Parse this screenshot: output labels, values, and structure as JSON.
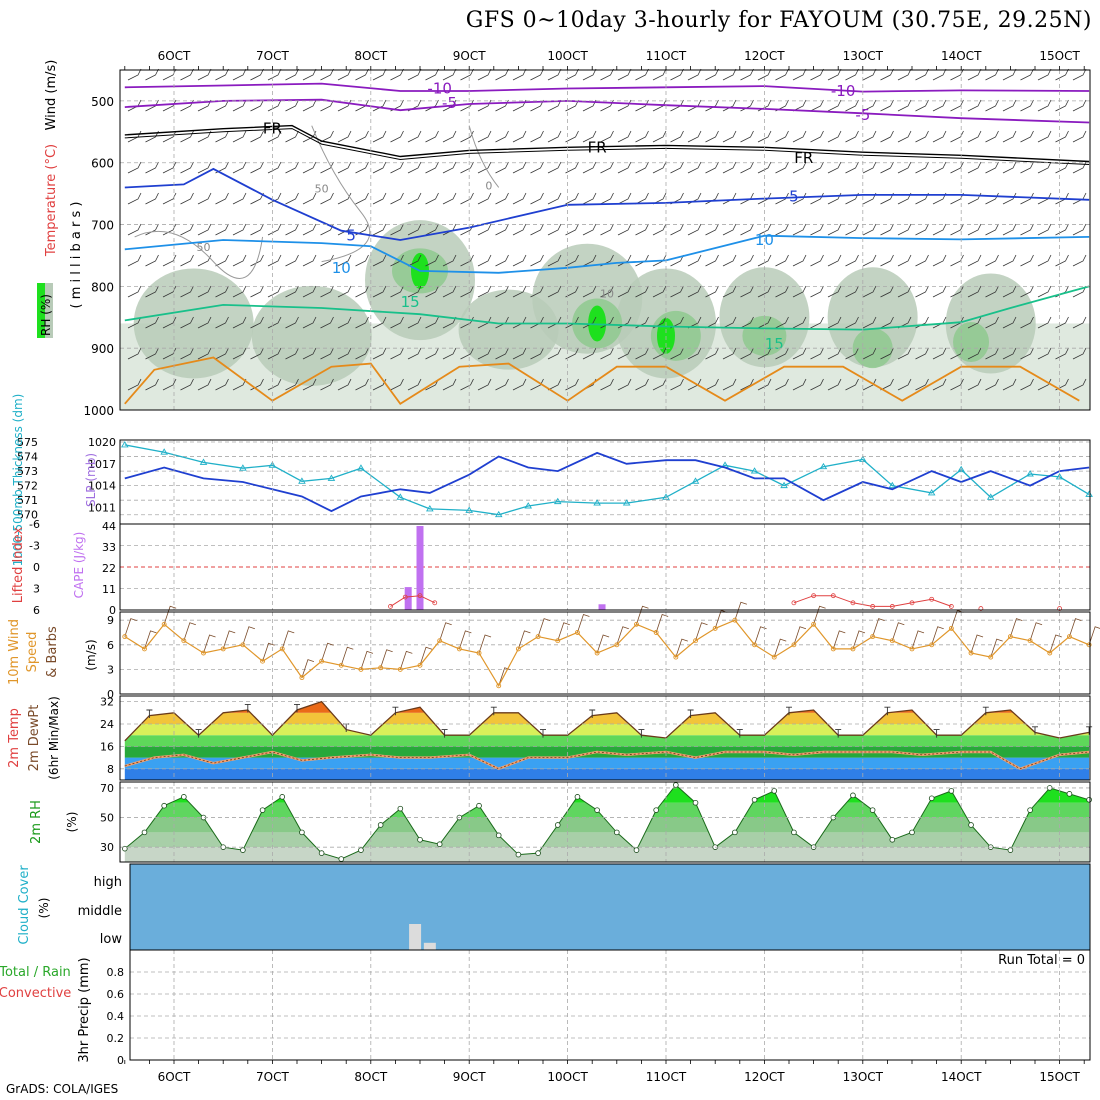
{
  "title": "GFS 0~10day 3-hourly for FAYOUM (30.75E, 29.25N)",
  "credit": "GrADS: COLA/IGES",
  "colors": {
    "purple": "#8a1bbf",
    "black": "#000000",
    "blue": "#1f3fd0",
    "lightblue": "#1e90e8",
    "teal": "#18c08a",
    "orange": "#e58a1a",
    "cyan": "#20b0c8",
    "slp": "#1f3fd0",
    "cape": "#c071f0",
    "li": "#e04040",
    "wind": "#e0962a",
    "rhgreen": "#1ee01e",
    "cloud": "#6aaedb",
    "grid": "#aaaaaa"
  },
  "chart_data": [
    {
      "type": "line",
      "panel": "upper-air",
      "ylabel_parts": [
        "RH (%)",
        "Temperature (°C)",
        "Wind (m/s)"
      ],
      "ylabel2": "(millibars)",
      "x_ticks": [
        "6OCT",
        "7OCT",
        "8OCT",
        "9OCT",
        "10OCT",
        "11OCT",
        "12OCT",
        "13OCT",
        "14OCT",
        "15OCT"
      ],
      "y_ticks": [
        "500",
        "600",
        "700",
        "800",
        "900",
        "1000"
      ],
      "ylim": [
        450,
        1000
      ],
      "contour_labels": [
        "-10",
        "-10",
        "-5",
        "-5",
        "FR",
        "FR",
        "FR",
        "5",
        "5",
        "10",
        "10",
        "15",
        "15",
        "50",
        "10",
        "50",
        "0"
      ],
      "series": [
        {
          "name": "-10",
          "x": [
            5.5,
            6.5,
            7.5,
            8.3,
            9.0,
            10.0,
            11.0,
            12.0,
            13.0,
            14.0,
            15.3
          ],
          "y": [
            478,
            475,
            472,
            484,
            484,
            480,
            478,
            476,
            485,
            483,
            484
          ]
        },
        {
          "name": "-5",
          "x": [
            5.5,
            6.5,
            7.5,
            8.3,
            9.0,
            10.0,
            11.0,
            12.0,
            13.0,
            14.0,
            15.3
          ],
          "y": [
            510,
            500,
            498,
            515,
            505,
            500,
            507,
            513,
            520,
            528,
            535
          ]
        },
        {
          "name": "FR",
          "x": [
            5.5,
            6.5,
            7.2,
            7.5,
            8.3,
            9.0,
            10.0,
            11.0,
            12.0,
            13.0,
            14.0,
            15.3
          ],
          "y": [
            555,
            545,
            540,
            565,
            590,
            580,
            575,
            572,
            575,
            583,
            588,
            598
          ]
        },
        {
          "name": "5",
          "x": [
            5.5,
            6.1,
            6.4,
            7.0,
            7.7,
            8.3,
            9.0,
            10.0,
            11.0,
            12.0,
            13.0,
            14.0,
            15.3
          ],
          "y": [
            640,
            635,
            610,
            660,
            710,
            725,
            705,
            668,
            665,
            658,
            652,
            652,
            660
          ]
        },
        {
          "name": "10",
          "x": [
            5.5,
            6.5,
            7.5,
            8.0,
            8.5,
            9.3,
            10.0,
            10.5,
            11.0,
            12.0,
            13.0,
            14.0,
            15.3
          ],
          "y": [
            740,
            725,
            730,
            735,
            775,
            778,
            770,
            762,
            758,
            718,
            722,
            724,
            720
          ]
        },
        {
          "name": "15",
          "x": [
            5.5,
            6.5,
            7.5,
            8.5,
            9.3,
            10.0,
            11.0,
            12.0,
            13.0,
            14.0,
            14.5,
            15.3
          ],
          "y": [
            855,
            830,
            835,
            845,
            860,
            860,
            865,
            868,
            870,
            858,
            835,
            800
          ]
        },
        {
          "name": "20",
          "x": [
            5.5,
            5.8,
            6.4,
            7.0,
            7.6,
            8.0,
            8.3,
            8.9,
            9.4,
            10.0,
            10.5,
            11.0,
            11.6,
            12.2,
            12.8,
            13.4,
            14.0,
            14.6,
            15.2
          ],
          "y": [
            990,
            935,
            915,
            985,
            930,
            925,
            990,
            930,
            925,
            985,
            930,
            930,
            985,
            930,
            930,
            985,
            930,
            930,
            985
          ]
        }
      ],
      "rh_peaks": [
        {
          "x": 8.5,
          "rh": 90,
          "p": 775
        },
        {
          "x": 10.3,
          "rh": 80,
          "p": 860
        },
        {
          "x": 11.0,
          "rh": 70,
          "p": 880
        }
      ]
    },
    {
      "type": "line",
      "panel": "thickness-slp",
      "ylabel_left": "1000-500mb Thickness (dm)",
      "ylabel_right": "SLP (mb)",
      "y_ticks_left": [
        "575",
        "574",
        "573",
        "572",
        "571",
        "570"
      ],
      "y_ticks_right": [
        "1020",
        "1017",
        "1014",
        "1011"
      ],
      "ylim_thickness": [
        569.5,
        575
      ],
      "ylim_slp": [
        1009,
        1020
      ],
      "series": [
        {
          "name": "1000-500mb Thickness (dm)",
          "x": [
            5.5,
            5.9,
            6.3,
            6.7,
            7.0,
            7.3,
            7.6,
            7.9,
            8.3,
            8.6,
            9.0,
            9.3,
            9.6,
            9.9,
            10.3,
            10.6,
            11.0,
            11.3,
            11.6,
            11.9,
            12.2,
            12.6,
            13.0,
            13.3,
            13.7,
            14.0,
            14.3,
            14.7,
            15.0,
            15.3
          ],
          "y": [
            574.8,
            574.3,
            573.6,
            573.2,
            573.4,
            572.3,
            572.5,
            573.2,
            571.2,
            570.4,
            570.3,
            570.0,
            570.6,
            570.9,
            570.8,
            570.8,
            571.2,
            572.3,
            573.4,
            573.0,
            572.0,
            573.3,
            573.8,
            572.0,
            571.5,
            573.1,
            571.2,
            572.8,
            572.6,
            571.4
          ]
        },
        {
          "name": "SLP (mb)",
          "x": [
            5.5,
            5.9,
            6.3,
            6.7,
            7.0,
            7.3,
            7.6,
            7.9,
            8.3,
            8.6,
            9.0,
            9.3,
            9.6,
            9.9,
            10.3,
            10.6,
            11.0,
            11.3,
            11.6,
            11.9,
            12.2,
            12.6,
            13.0,
            13.3,
            13.7,
            14.0,
            14.3,
            14.7,
            15.0,
            15.3
          ],
          "y": [
            1015.0,
            1016.5,
            1015.0,
            1014.5,
            1013.5,
            1012.5,
            1010.5,
            1012.5,
            1013.5,
            1013.0,
            1015.5,
            1018.0,
            1016.5,
            1016.0,
            1018.5,
            1017.0,
            1017.5,
            1017.5,
            1016.5,
            1015.0,
            1015.0,
            1012.0,
            1014.5,
            1013.5,
            1016.0,
            1014.5,
            1016.0,
            1014.0,
            1016.0,
            1016.5
          ]
        }
      ]
    },
    {
      "type": "bar",
      "panel": "stability",
      "ylabel_left": "Lifted Index",
      "ylabel_right": "CAPE (J/kg)",
      "y_ticks_left": [
        "-6",
        "-3",
        "0",
        "3",
        "6"
      ],
      "y_ticks_right": [
        "44",
        "33",
        "22",
        "11",
        "0"
      ],
      "ylim_li": [
        -6,
        6
      ],
      "ylim_cape": [
        0,
        44
      ],
      "cape": {
        "x": [
          8.38,
          8.5,
          10.35
        ],
        "values": [
          12,
          44,
          3
        ]
      },
      "lifted_index": {
        "x": [
          8.2,
          8.35,
          8.5,
          8.65,
          12.3,
          12.5,
          12.7,
          12.9,
          13.1,
          13.3,
          13.5,
          13.7,
          13.9,
          14.2,
          15.0
        ],
        "values": [
          5.5,
          4.2,
          4.0,
          5.0,
          5.0,
          4.0,
          4.0,
          5.0,
          5.5,
          5.5,
          5.0,
          4.5,
          5.5,
          5.8,
          5.8
        ]
      }
    },
    {
      "type": "line",
      "panel": "10m-wind",
      "ylabel": "10m Wind Speed & Barbs",
      "yunit": "(m/s)",
      "y_ticks": [
        "0",
        "3",
        "6",
        "9"
      ],
      "ylim": [
        0,
        10
      ],
      "series": [
        {
          "name": "Speed",
          "x": [
            5.5,
            5.7,
            5.9,
            6.1,
            6.3,
            6.5,
            6.7,
            6.9,
            7.1,
            7.3,
            7.5,
            7.7,
            7.9,
            8.1,
            8.3,
            8.5,
            8.7,
            8.9,
            9.1,
            9.3,
            9.5,
            9.7,
            9.9,
            10.1,
            10.3,
            10.5,
            10.7,
            10.9,
            11.1,
            11.3,
            11.5,
            11.7,
            11.9,
            12.1,
            12.3,
            12.5,
            12.7,
            12.9,
            13.1,
            13.3,
            13.5,
            13.7,
            13.9,
            14.1,
            14.3,
            14.5,
            14.7,
            14.9,
            15.1,
            15.3
          ],
          "y": [
            7.0,
            5.5,
            8.5,
            6.5,
            5.0,
            5.5,
            6.0,
            4.0,
            5.5,
            2.0,
            4.0,
            3.5,
            3.0,
            3.2,
            3.0,
            3.5,
            6.5,
            5.5,
            5.0,
            1.0,
            5.5,
            7.0,
            6.5,
            7.5,
            5.0,
            6.0,
            8.5,
            7.5,
            4.5,
            6.5,
            8.0,
            9.0,
            6.0,
            4.5,
            6.0,
            8.5,
            5.5,
            5.5,
            7.0,
            6.5,
            5.5,
            6.0,
            8.0,
            5.0,
            4.5,
            7.0,
            6.5,
            5.0,
            7.0,
            6.0
          ]
        }
      ]
    },
    {
      "type": "area",
      "panel": "2m-temp",
      "ylabel_parts": [
        "2m Temp",
        "2m DewPt",
        "(6hr Min/Max)"
      ],
      "y_ticks": [
        "8",
        "16",
        "24",
        "32"
      ],
      "ylim": [
        4,
        34
      ],
      "series": [
        {
          "name": "2m Temp",
          "x": [
            5.5,
            5.75,
            6.0,
            6.25,
            6.5,
            6.75,
            7.0,
            7.25,
            7.5,
            7.75,
            8.0,
            8.25,
            8.5,
            8.75,
            9.0,
            9.25,
            9.5,
            9.75,
            10.0,
            10.25,
            10.5,
            10.75,
            11.0,
            11.25,
            11.5,
            11.75,
            12.0,
            12.25,
            12.5,
            12.75,
            13.0,
            13.25,
            13.5,
            13.75,
            14.0,
            14.25,
            14.5,
            14.75,
            15.0,
            15.3
          ],
          "y": [
            18,
            27,
            28,
            20,
            28,
            29,
            20,
            29,
            32,
            22,
            20,
            28,
            30,
            20,
            20,
            28,
            28,
            20,
            20,
            27,
            28,
            20,
            19,
            27,
            28,
            20,
            20,
            28,
            29,
            20,
            20,
            28,
            29,
            20,
            20,
            28,
            29,
            21,
            19,
            21
          ]
        },
        {
          "name": "2m DewPt",
          "x": [
            5.5,
            5.8,
            6.1,
            6.4,
            6.7,
            7.0,
            7.3,
            7.6,
            8.0,
            8.3,
            8.6,
            9.0,
            9.3,
            9.6,
            10.0,
            10.3,
            10.6,
            11.0,
            11.3,
            11.6,
            12.0,
            12.3,
            12.6,
            13.0,
            13.3,
            13.6,
            14.0,
            14.3,
            14.6,
            15.0,
            15.3
          ],
          "y": [
            9,
            12,
            13,
            10,
            12,
            14,
            11,
            12,
            13,
            12,
            12,
            13,
            8,
            12,
            12,
            14,
            13,
            14,
            12,
            14,
            14,
            13,
            14,
            14,
            14,
            13,
            14,
            14,
            8,
            13,
            14
          ]
        }
      ]
    },
    {
      "type": "area",
      "panel": "2m-rh",
      "ylabel": "2m RH",
      "yunit": "(%)",
      "y_ticks": [
        "30",
        "50",
        "70"
      ],
      "ylim": [
        20,
        74
      ],
      "series": [
        {
          "name": "2m RH",
          "x": [
            5.5,
            5.7,
            5.9,
            6.1,
            6.3,
            6.5,
            6.7,
            6.9,
            7.1,
            7.3,
            7.5,
            7.7,
            7.9,
            8.1,
            8.3,
            8.5,
            8.7,
            8.9,
            9.1,
            9.3,
            9.5,
            9.7,
            9.9,
            10.1,
            10.3,
            10.5,
            10.7,
            10.9,
            11.1,
            11.3,
            11.5,
            11.7,
            11.9,
            12.1,
            12.3,
            12.5,
            12.7,
            12.9,
            13.1,
            13.3,
            13.5,
            13.7,
            13.9,
            14.1,
            14.3,
            14.5,
            14.7,
            14.9,
            15.1,
            15.3
          ],
          "y": [
            29,
            40,
            58,
            64,
            50,
            30,
            28,
            55,
            64,
            40,
            26,
            22,
            28,
            45,
            56,
            35,
            32,
            50,
            58,
            38,
            25,
            26,
            45,
            64,
            55,
            40,
            28,
            55,
            72,
            60,
            30,
            40,
            62,
            68,
            40,
            30,
            50,
            65,
            55,
            35,
            40,
            63,
            68,
            45,
            30,
            28,
            55,
            70,
            66,
            62
          ]
        }
      ]
    },
    {
      "type": "heatmap",
      "panel": "cloud-cover",
      "ylabel": "Cloud Cover",
      "yunit": "(%)",
      "y_ticks": [
        "high",
        "middle",
        "low"
      ],
      "low_cloud": {
        "x": [
          8.45,
          8.6
        ],
        "values": [
          20,
          8
        ]
      }
    },
    {
      "type": "bar",
      "panel": "precip",
      "ylabel_parts": [
        "Total / Rain",
        "Convective"
      ],
      "ylabel2": "3hr Precip (mm)",
      "y_ticks": [
        "0",
        "0.2",
        "0.4",
        "0.6",
        "0.8"
      ],
      "ylim": [
        0,
        1
      ],
      "run_total": "Run Total = 0",
      "values": []
    }
  ]
}
